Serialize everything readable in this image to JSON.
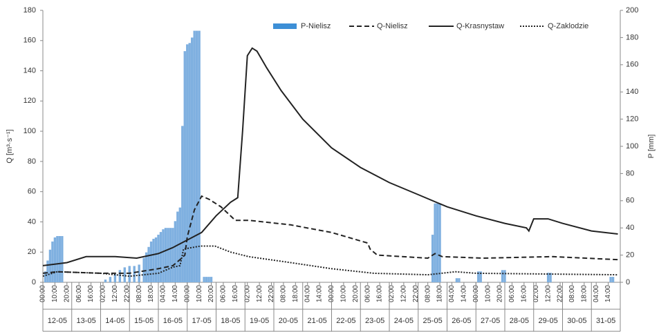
{
  "chart_data": {
    "type": "line",
    "y_label": "Q [m³·s⁻¹]",
    "y2_label": "P [mm]",
    "ylim": [
      0,
      180
    ],
    "yticks": [
      0,
      20,
      40,
      60,
      80,
      100,
      120,
      140,
      160,
      180
    ],
    "y2lim": [
      0,
      200
    ],
    "y2ticks": [
      0,
      20,
      40,
      60,
      80,
      100,
      120,
      140,
      160,
      180,
      200
    ],
    "x_groups": [
      "12-05",
      "13-05",
      "14-05",
      "15-05",
      "16-05",
      "17-05",
      "18-05",
      "19-05",
      "20-05",
      "21-05",
      "22-05",
      "23-05",
      "24-05",
      "25-05",
      "26-05",
      "27-05",
      "28-05",
      "29-05",
      "30-05",
      "31-05"
    ],
    "xticks": [
      {
        "value": "12-05 00:00",
        "label": "00:00"
      },
      {
        "value": "12-05 10:00",
        "label": "10:00"
      },
      {
        "value": "12-05 20:00",
        "label": "20:00"
      },
      {
        "value": "13-05 06:00",
        "label": "06:00"
      },
      {
        "value": "13-05 16:00",
        "label": "16:00"
      },
      {
        "value": "14-05 02:00",
        "label": "02:00"
      },
      {
        "value": "14-05 12:00",
        "label": "12:00"
      },
      {
        "value": "14-05 22:00",
        "label": "22:00"
      },
      {
        "value": "15-05 08:00",
        "label": "08:00"
      },
      {
        "value": "15-05 18:00",
        "label": "18:00"
      },
      {
        "value": "16-05 04:00",
        "label": "04:00"
      },
      {
        "value": "16-05 14:00",
        "label": "14:00"
      },
      {
        "value": "17-05 00:00",
        "label": "00:00"
      },
      {
        "value": "17-05 10:00",
        "label": "10:00"
      },
      {
        "value": "17-05 20:00",
        "label": "20:00"
      },
      {
        "value": "18-05 06:00",
        "label": "06:00"
      },
      {
        "value": "18-05 16:00",
        "label": "16:00"
      },
      {
        "value": "19-05 02:00",
        "label": "02:00"
      },
      {
        "value": "19-05 12:00",
        "label": "12:00"
      },
      {
        "value": "19-05 22:00",
        "label": "22:00"
      },
      {
        "value": "20-05 08:00",
        "label": "08:00"
      },
      {
        "value": "20-05 18:00",
        "label": "18:00"
      },
      {
        "value": "21-05 04:00",
        "label": "04:00"
      },
      {
        "value": "21-05 14:00",
        "label": "14:00"
      },
      {
        "value": "22-05 00:00",
        "label": "00:00"
      },
      {
        "value": "22-05 10:00",
        "label": "10:00"
      },
      {
        "value": "22-05 20:00",
        "label": "20:00"
      },
      {
        "value": "23-05 06:00",
        "label": "06:00"
      },
      {
        "value": "23-05 16:00",
        "label": "16:00"
      },
      {
        "value": "24-05 02:00",
        "label": "02:00"
      },
      {
        "value": "24-05 12:00",
        "label": "12:00"
      },
      {
        "value": "24-05 22:00",
        "label": "22:00"
      },
      {
        "value": "25-05 08:00",
        "label": "08:00"
      },
      {
        "value": "25-05 18:00",
        "label": "18:00"
      },
      {
        "value": "26-05 04:00",
        "label": "04:00"
      },
      {
        "value": "26-05 14:00",
        "label": "14:00"
      },
      {
        "value": "27-05 00:00",
        "label": "00:00"
      },
      {
        "value": "27-05 10:00",
        "label": "10:00"
      },
      {
        "value": "27-05 20:00",
        "label": "20:00"
      },
      {
        "value": "28-05 06:00",
        "label": "06:00"
      },
      {
        "value": "28-05 16:00",
        "label": "16:00"
      },
      {
        "value": "29-05 02:00",
        "label": "02:00"
      },
      {
        "value": "29-05 12:00",
        "label": "12:00"
      },
      {
        "value": "29-05 22:00",
        "label": "22:00"
      },
      {
        "value": "30-05 08:00",
        "label": "08:00"
      },
      {
        "value": "30-05 18:00",
        "label": "18:00"
      },
      {
        "value": "31-05 04:00",
        "label": "04:00"
      },
      {
        "value": "31-05 14:00",
        "label": "14:00"
      }
    ],
    "series": [
      {
        "name": "P-Nielisz",
        "type": "bar",
        "axis": "y2",
        "color": "#7fb0e0",
        "x": [
          "12-05 02:00",
          "12-05 04:00",
          "12-05 06:00",
          "12-05 08:00",
          "12-05 10:00",
          "12-05 12:00",
          "12-05 14:00",
          "12-05 16:00",
          "14-05 04:00",
          "14-05 08:00",
          "14-05 12:00",
          "14-05 16:00",
          "14-05 20:00",
          "15-05 00:00",
          "15-05 04:00",
          "15-05 08:00",
          "15-05 12:00",
          "15-05 14:00",
          "15-05 16:00",
          "15-05 18:00",
          "15-05 20:00",
          "15-05 22:00",
          "16-05 00:00",
          "16-05 02:00",
          "16-05 04:00",
          "16-05 06:00",
          "16-05 08:00",
          "16-05 10:00",
          "16-05 12:00",
          "16-05 14:00",
          "16-05 16:00",
          "16-05 18:00",
          "16-05 20:00",
          "16-05 22:00",
          "17-05 00:00",
          "17-05 02:00",
          "17-05 04:00",
          "17-05 06:00",
          "17-05 08:00",
          "17-05 10:00",
          "17-05 14:00",
          "17-05 16:00",
          "17-05 18:00",
          "17-05 20:00",
          "25-05 12:00",
          "25-05 14:00",
          "25-05 16:00",
          "25-05 18:00",
          "26-05 08:00",
          "26-05 10:00",
          "27-05 02:00",
          "27-05 04:00",
          "27-05 22:00",
          "28-05 00:00",
          "29-05 12:00",
          "29-05 14:00",
          "31-05 16:00",
          "31-05 18:00"
        ],
        "values": [
          8,
          16,
          24,
          30,
          33,
          34,
          34,
          34,
          2,
          4,
          6,
          9,
          11,
          12,
          12,
          13,
          18,
          22,
          26,
          30,
          32,
          33,
          35,
          37,
          39,
          40,
          40,
          40,
          40,
          45,
          52,
          55,
          115,
          170,
          175,
          176,
          180,
          185,
          185,
          185,
          4,
          4,
          4,
          4,
          35,
          58,
          58,
          58,
          3,
          3,
          8,
          8,
          9,
          9,
          7,
          7,
          4,
          4
        ]
      },
      {
        "name": "Q-Nielisz",
        "type": "line",
        "axis": "y",
        "color": "#222222",
        "dash": "dashed",
        "x": [
          "12-05 00:00",
          "12-05 12:00",
          "14-05 00:00",
          "15-05 00:00",
          "16-05 00:00",
          "16-05 12:00",
          "16-05 18:00",
          "16-05 22:00",
          "17-05 00:00",
          "17-05 06:00",
          "17-05 12:00",
          "17-05 18:00",
          "18-05 04:00",
          "18-05 16:00",
          "19-05 04:00",
          "20-05 14:00",
          "22-05 00:00",
          "23-05 06:00",
          "23-05 08:00",
          "23-05 14:00",
          "25-05 08:00",
          "25-05 14:00",
          "25-05 20:00",
          "27-05 06:00",
          "29-05 16:00",
          "31-05 22:00"
        ],
        "values": [
          6,
          7,
          6,
          6,
          9,
          11,
          15,
          18,
          30,
          48,
          57,
          55,
          50,
          41,
          41,
          38,
          33,
          26,
          22,
          18,
          16,
          19,
          17,
          16,
          17,
          15
        ]
      },
      {
        "name": "Q-Krasnystaw",
        "type": "line",
        "axis": "y",
        "color": "#222222",
        "dash": "solid",
        "x": [
          "12-05 00:00",
          "12-05 20:00",
          "13-05 12:00",
          "14-05 12:00",
          "15-05 06:00",
          "16-05 00:00",
          "16-05 12:00",
          "17-05 00:00",
          "17-05 12:00",
          "18-05 00:00",
          "18-05 12:00",
          "18-05 18:00",
          "18-05 22:00",
          "19-05 02:00",
          "19-05 06:00",
          "19-05 10:00",
          "19-05 18:00",
          "20-05 06:00",
          "21-05 00:00",
          "22-05 00:00",
          "23-05 00:00",
          "24-05 00:00",
          "25-05 00:00",
          "26-05 00:00",
          "27-05 00:00",
          "28-05 00:00",
          "28-05 18:00",
          "28-05 20:00",
          "29-05 00:00",
          "29-05 12:00",
          "30-05 00:00",
          "31-05 00:00",
          "31-05 22:00"
        ],
        "values": [
          11,
          13,
          17,
          17,
          16,
          19,
          23,
          28,
          33,
          44,
          53,
          56,
          100,
          150,
          155,
          153,
          142,
          127,
          108,
          89,
          76,
          66,
          58,
          50,
          44,
          39,
          36,
          34,
          42,
          42,
          39,
          34,
          32
        ]
      },
      {
        "name": "Q-Zaklodzie",
        "type": "line",
        "axis": "y",
        "color": "#222222",
        "dash": "dotted",
        "x": [
          "12-05 00:00",
          "12-05 12:00",
          "14-05 00:00",
          "15-05 00:00",
          "16-05 00:00",
          "16-05 12:00",
          "16-05 18:00",
          "16-05 21:00",
          "17-05 11:00",
          "17-05 23:00",
          "18-05 12:00",
          "19-05 03:00",
          "20-05 14:00",
          "22-05 00:00",
          "23-05 11:00",
          "25-05 08:00",
          "26-05 07:00",
          "27-05 00:00",
          "31-05 22:00"
        ],
        "values": [
          4,
          7,
          6,
          4,
          6,
          10,
          11,
          22,
          24,
          24,
          20,
          17,
          13,
          9,
          6,
          5,
          7,
          6,
          5
        ]
      }
    ]
  }
}
